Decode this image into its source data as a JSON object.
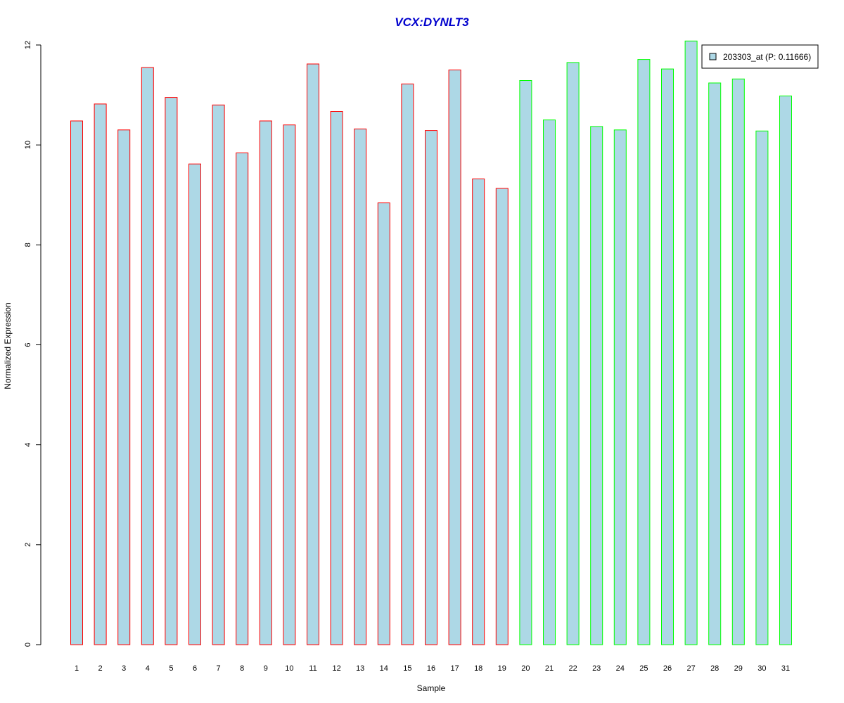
{
  "chart_data": {
    "type": "bar",
    "title": "VCX:DYNLT3",
    "xlabel": "Sample",
    "ylabel": "Normalized Expression",
    "ylim": [
      0,
      12
    ],
    "yticks": [
      0,
      2,
      4,
      6,
      8,
      10,
      12
    ],
    "categories": [
      "1",
      "2",
      "3",
      "4",
      "5",
      "6",
      "7",
      "8",
      "9",
      "10",
      "11",
      "12",
      "13",
      "14",
      "15",
      "16",
      "17",
      "18",
      "19",
      "20",
      "21",
      "22",
      "23",
      "24",
      "25",
      "26",
      "27",
      "28",
      "29",
      "30",
      "31"
    ],
    "values": [
      10.48,
      10.82,
      10.3,
      11.55,
      10.95,
      9.62,
      10.8,
      9.84,
      10.48,
      10.4,
      11.62,
      10.67,
      10.32,
      8.84,
      11.22,
      10.29,
      11.5,
      9.32,
      9.13,
      11.29,
      10.5,
      11.65,
      10.37,
      10.3,
      11.71,
      11.52,
      12.08,
      11.24,
      11.32,
      10.28,
      10.98
    ],
    "groups": [
      "red",
      "red",
      "red",
      "red",
      "red",
      "red",
      "red",
      "red",
      "red",
      "red",
      "red",
      "red",
      "red",
      "red",
      "red",
      "red",
      "red",
      "red",
      "red",
      "green",
      "green",
      "green",
      "green",
      "green",
      "green",
      "green",
      "green",
      "green",
      "green",
      "green",
      "green"
    ],
    "colors": {
      "fill": "#add8e6",
      "red": "#ff0000",
      "green": "#00ff00",
      "title": "#0000cd"
    },
    "legend": {
      "label": "203303_at (P: 0.11666)",
      "position": "top-right"
    },
    "grid": false
  }
}
